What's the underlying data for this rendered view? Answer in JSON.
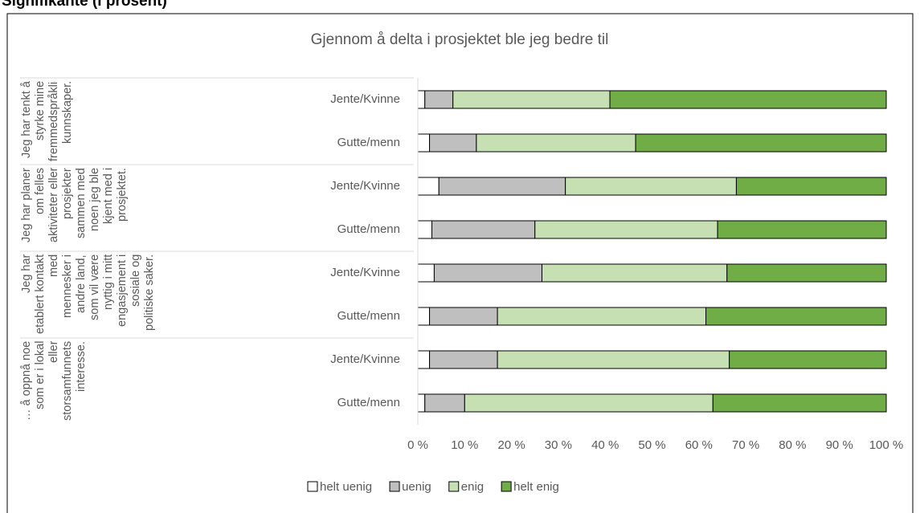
{
  "heading": "Signifikante (i prosent)",
  "chart_data": {
    "type": "stacked-bar-horizontal",
    "title": "Gjennom å delta i prosjektet ble jeg bedre til",
    "groups": [
      {
        "label": "Jeg har tenkt å styrke mine fremmedspråklige kunnskaper.",
        "categories": [
          "Jente/Kvinne",
          "Gutte/menn"
        ]
      },
      {
        "label": "Jeg har planer om felles aktiviteter eller prosjekter sammen med noen jeg ble kjent med i prosjektet.",
        "categories": [
          "Jente/Kvinne",
          "Gutte/menn"
        ]
      },
      {
        "label": "Jeg har etablert kontakt med mennesker i andre land, som vil være nyttig i mitt engasjement i sosiale og politiske saker.",
        "categories": [
          "Jente/Kvinne",
          "Gutte/menn"
        ]
      },
      {
        "label": "… å oppnå noe som er i lokal eller storsamfunnets interesse.",
        "categories": [
          "Jente/Kvinne",
          "Gutte/menn"
        ]
      }
    ],
    "series": [
      {
        "name": "helt uenig",
        "color": "#ffffff",
        "values": [
          1.5,
          2.5,
          4.5,
          3,
          3.5,
          2.5,
          2.5,
          1.5
        ]
      },
      {
        "name": "uenig",
        "color": "#bfbfbf",
        "values": [
          6,
          10,
          27,
          22,
          23,
          14.5,
          14.5,
          8.5
        ]
      },
      {
        "name": "enig",
        "color": "#c6e0b4",
        "values": [
          33.5,
          34,
          36.5,
          39,
          39.5,
          44.5,
          49.5,
          53
        ]
      },
      {
        "name": "helt enig",
        "color": "#70ad47",
        "values": [
          59,
          53.5,
          32,
          36,
          34,
          38.5,
          33.5,
          37
        ]
      }
    ],
    "xlim": [
      0,
      100
    ],
    "xticks": [
      {
        "value": 0,
        "label": "0 %"
      },
      {
        "value": 10,
        "label": "10 %"
      },
      {
        "value": 20,
        "label": "20 %"
      },
      {
        "value": 30,
        "label": "30 %"
      },
      {
        "value": 40,
        "label": "40 %"
      },
      {
        "value": 50,
        "label": "50 %"
      },
      {
        "value": 60,
        "label": "60 %"
      },
      {
        "value": 70,
        "label": "70 %"
      },
      {
        "value": 80,
        "label": "80 %"
      },
      {
        "value": 90,
        "label": "90 %"
      },
      {
        "value": 100,
        "label": "100 %"
      }
    ],
    "legend": "bottom",
    "grid": false
  }
}
